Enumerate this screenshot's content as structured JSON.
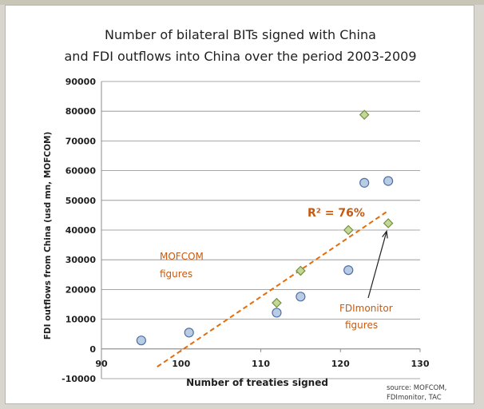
{
  "chart_data": {
    "type": "scatter",
    "title_line1": "Number of bilateral BITs signed with China",
    "title_line2": "and FDI outflows into China over the period 2003-2009",
    "xlabel": "Number of treaties signed",
    "ylabel": "FDI outflows from China (usd mn, MOFCOM)",
    "xlim": [
      90,
      130
    ],
    "ylim": [
      -10000,
      90000
    ],
    "x_ticks": [
      90,
      100,
      110,
      120,
      130
    ],
    "y_ticks": [
      -10000,
      0,
      10000,
      20000,
      30000,
      40000,
      50000,
      60000,
      70000,
      80000,
      90000
    ],
    "grid": "horizontal",
    "series": [
      {
        "marker": "circle",
        "color": "#b8cce4",
        "edge": "#4f6fa8",
        "points": [
          {
            "x": 95,
            "y": 2850
          },
          {
            "x": 101,
            "y": 5500
          },
          {
            "x": 112,
            "y": 12200
          },
          {
            "x": 115,
            "y": 17600
          },
          {
            "x": 121,
            "y": 26500
          },
          {
            "x": 123,
            "y": 55900
          },
          {
            "x": 126,
            "y": 56500
          }
        ]
      },
      {
        "marker": "diamond",
        "color": "#c4d79b",
        "edge": "#76923c",
        "points": [
          {
            "x": 112,
            "y": 15500
          },
          {
            "x": 115,
            "y": 26300
          },
          {
            "x": 121,
            "y": 40000
          },
          {
            "x": 123,
            "y": 78800
          },
          {
            "x": 126,
            "y": 42300
          }
        ]
      }
    ],
    "trendline": {
      "x1": 97,
      "y1": -6000,
      "x2": 126,
      "y2": 46500,
      "color": "#e46c0a"
    },
    "r2_label": "R² = 76%",
    "annotations": {
      "mofcom_line1": "MOFCOM",
      "mofcom_line2": "figures",
      "fdimonitor_line1": "FDImonitor",
      "fdimonitor_line2": "figures",
      "annotation_color": "#c55a11",
      "source_line1": "source: MOFCOM,",
      "source_line2": "FDImonitor, TAC"
    }
  }
}
